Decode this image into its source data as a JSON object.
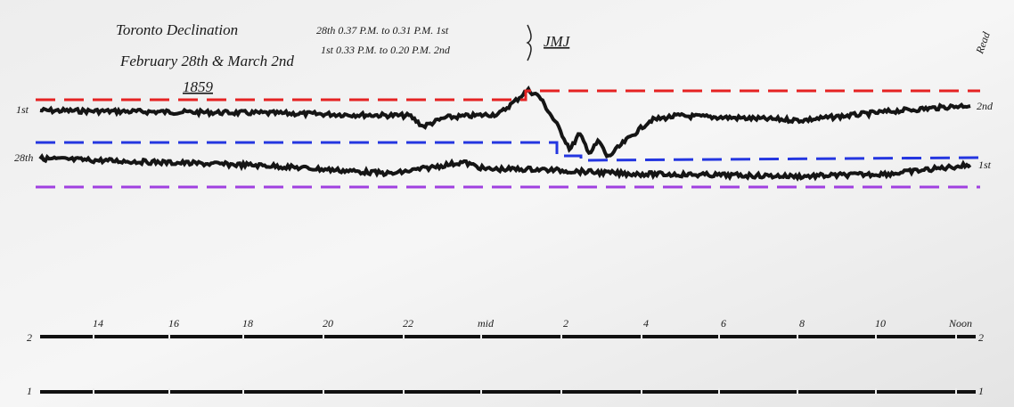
{
  "header": {
    "title": "Toronto Declination",
    "dates": "February 28th & March 2nd",
    "year": "1859",
    "times": [
      "28th 0.37 P.M. to 0.31 P.M. 1st",
      "1st 0.33 P.M. to 0.20 P.M. 2nd"
    ],
    "initials": "JMJ",
    "note": "Read"
  },
  "traces": {
    "labels_left": [
      "1st",
      "28th"
    ],
    "labels_right": [
      "2nd",
      "1st"
    ]
  },
  "scales": {
    "rows": [
      "2",
      "1"
    ],
    "hour_labels": [
      "14",
      "16",
      "18",
      "20",
      "22",
      "mid",
      "2",
      "4",
      "6",
      "8",
      "10",
      "Noon"
    ]
  }
}
